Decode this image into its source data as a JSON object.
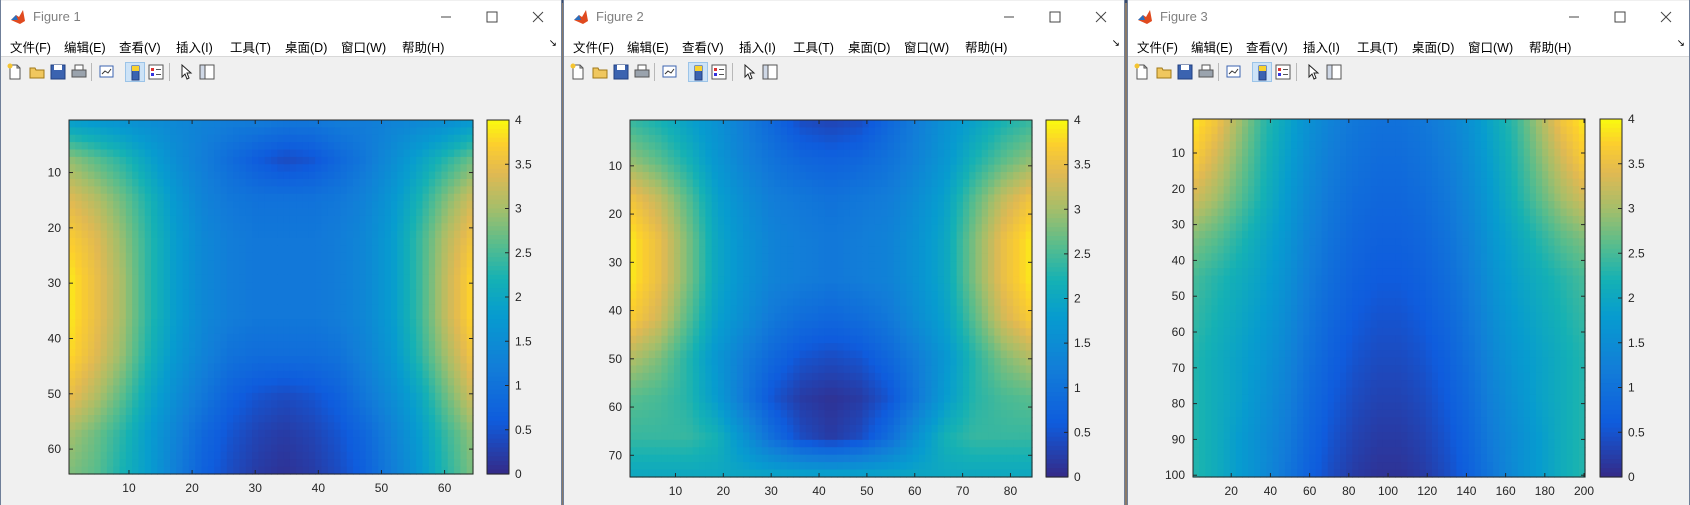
{
  "menu": [
    "文件(F)",
    "编辑(E)",
    "查看(V)",
    "插入(I)",
    "工具(T)",
    "桌面(D)",
    "窗口(W)",
    "帮助(H)"
  ],
  "toolbar_icons": [
    "new-file-icon",
    "open-folder-icon",
    "save-icon",
    "print-icon",
    "link-plot-icon",
    "insert-colorbar-icon",
    "insert-legend-icon",
    "pointer-icon",
    "property-editor-icon"
  ],
  "colors": {
    "parula_low": "#352a87",
    "parula_mid": "#13b4c8",
    "parula_high": "#f9fb0e"
  },
  "figures": [
    {
      "title": "Figure 1",
      "chart_data": {
        "type": "heatmap",
        "colormap": "parula",
        "xlim": [
          0.5,
          64.5
        ],
        "ylim": [
          0.5,
          64.5
        ],
        "y_reversed": true,
        "xticks": [
          10,
          20,
          30,
          40,
          50,
          60
        ],
        "yticks": [
          10,
          20,
          30,
          40,
          50,
          60
        ],
        "clim": [
          0,
          4
        ],
        "colorbar_ticks": [
          "4",
          "3.5",
          "3",
          "2.5",
          "2",
          "1.5",
          "1",
          "0.5",
          "0"
        ],
        "grid": [
          [
            1.8,
            1.7,
            1.6,
            1.5,
            1.4,
            1.3,
            1.2,
            1.2,
            1.1,
            1.1,
            1.2,
            1.2,
            1.3,
            1.4,
            1.5,
            1.7
          ],
          [
            2.9,
            2.6,
            2.3,
            1.9,
            1.5,
            1.2,
            0.9,
            0.6,
            0.4,
            0.5,
            0.8,
            1.1,
            1.5,
            1.9,
            2.3,
            2.7
          ],
          [
            3.4,
            3.1,
            2.7,
            2.2,
            1.7,
            1.3,
            1.1,
            1.0,
            1.0,
            1.0,
            1.1,
            1.3,
            1.7,
            2.2,
            2.8,
            3.3
          ],
          [
            3.7,
            3.4,
            2.9,
            2.3,
            1.8,
            1.4,
            1.2,
            1.1,
            1.1,
            1.1,
            1.2,
            1.4,
            1.8,
            2.4,
            3.1,
            3.6
          ],
          [
            3.9,
            3.5,
            3.0,
            2.3,
            1.8,
            1.4,
            1.2,
            1.1,
            1.1,
            1.1,
            1.2,
            1.4,
            1.8,
            2.4,
            3.2,
            3.8
          ],
          [
            3.9,
            3.5,
            3.0,
            2.3,
            1.8,
            1.4,
            1.2,
            1.1,
            1.1,
            1.1,
            1.2,
            1.4,
            1.8,
            2.4,
            3.2,
            3.8
          ],
          [
            3.8,
            3.4,
            2.9,
            2.2,
            1.7,
            1.3,
            1.0,
            0.9,
            0.9,
            0.9,
            1.0,
            1.3,
            1.7,
            2.3,
            3.0,
            3.6
          ],
          [
            3.5,
            3.1,
            2.6,
            2.0,
            1.5,
            1.1,
            0.7,
            0.5,
            0.4,
            0.5,
            0.7,
            1.1,
            1.5,
            2.0,
            2.7,
            3.3
          ],
          [
            3.0,
            2.7,
            2.3,
            1.8,
            1.3,
            0.8,
            0.5,
            0.3,
            0.2,
            0.3,
            0.5,
            0.8,
            1.3,
            1.8,
            2.4,
            2.9
          ],
          [
            2.8,
            2.6,
            2.2,
            1.8,
            1.2,
            0.7,
            0.4,
            0.2,
            0.1,
            0.2,
            0.4,
            0.7,
            1.2,
            1.7,
            2.3,
            2.8
          ]
        ]
      }
    },
    {
      "title": "Figure 2",
      "chart_data": {
        "type": "heatmap",
        "colormap": "parula",
        "xlim": [
          0.5,
          84.5
        ],
        "ylim": [
          0.5,
          74.5
        ],
        "y_reversed": true,
        "xticks": [
          10,
          20,
          30,
          40,
          50,
          60,
          70,
          80
        ],
        "yticks": [
          10,
          20,
          30,
          40,
          50,
          60,
          70
        ],
        "clim": [
          0,
          4
        ],
        "colorbar_ticks": [
          "4",
          "3.5",
          "3",
          "2.5",
          "2",
          "1.5",
          "1",
          "0.5",
          "0"
        ],
        "grid": [
          [
            2.4,
            2.2,
            1.9,
            1.6,
            1.2,
            0.8,
            0.4,
            0.3,
            0.4,
            0.8,
            1.2,
            1.6,
            1.9,
            2.2,
            2.4
          ],
          [
            2.9,
            2.6,
            2.2,
            1.7,
            1.3,
            1.0,
            0.8,
            0.7,
            0.8,
            1.0,
            1.3,
            1.7,
            2.2,
            2.6,
            2.9
          ],
          [
            3.6,
            3.2,
            2.6,
            1.9,
            1.5,
            1.2,
            1.1,
            1.0,
            1.1,
            1.2,
            1.5,
            1.9,
            2.6,
            3.2,
            3.6
          ],
          [
            3.9,
            3.5,
            2.8,
            2.0,
            1.6,
            1.3,
            1.2,
            1.1,
            1.2,
            1.3,
            1.6,
            2.0,
            2.8,
            3.5,
            3.9
          ],
          [
            3.9,
            3.5,
            2.8,
            2.0,
            1.6,
            1.3,
            1.2,
            1.1,
            1.2,
            1.3,
            1.6,
            2.0,
            2.8,
            3.5,
            3.9
          ],
          [
            3.7,
            3.3,
            2.6,
            1.9,
            1.5,
            1.1,
            0.9,
            0.8,
            0.9,
            1.1,
            1.5,
            1.9,
            2.6,
            3.3,
            3.7
          ],
          [
            3.1,
            2.8,
            2.3,
            1.7,
            1.2,
            0.8,
            0.5,
            0.4,
            0.5,
            0.8,
            1.2,
            1.7,
            2.3,
            2.8,
            3.1
          ],
          [
            2.6,
            2.5,
            2.3,
            1.8,
            1.1,
            0.5,
            0.2,
            0.1,
            0.2,
            0.5,
            1.1,
            1.8,
            2.3,
            2.5,
            2.6
          ],
          [
            2.4,
            2.4,
            2.4,
            2.2,
            1.6,
            0.9,
            0.4,
            0.2,
            0.4,
            0.9,
            1.6,
            2.2,
            2.4,
            2.4,
            2.4
          ],
          [
            2.0,
            2.0,
            2.0,
            2.0,
            2.0,
            2.0,
            2.0,
            2.0,
            2.0,
            2.0,
            2.0,
            2.0,
            2.0,
            2.0,
            2.0
          ]
        ]
      }
    },
    {
      "title": "Figure 3",
      "chart_data": {
        "type": "heatmap",
        "colormap": "parula",
        "xlim": [
          0.5,
          200.5
        ],
        "ylim": [
          0.5,
          100.5
        ],
        "y_reversed": true,
        "xticks": [
          20,
          40,
          60,
          80,
          100,
          120,
          140,
          160,
          180,
          200
        ],
        "yticks": [
          10,
          20,
          30,
          40,
          50,
          60,
          70,
          80,
          90,
          100
        ],
        "clim": [
          0,
          4
        ],
        "colorbar_ticks": [
          "4",
          "3.5",
          "3",
          "2.5",
          "2",
          "1.5",
          "1",
          "0.5",
          "0"
        ],
        "grid": [
          [
            3.9,
            3.6,
            3.0,
            2.4,
            2.0,
            1.6,
            1.3,
            1.1,
            1.0,
            1.0,
            1.1,
            1.3,
            1.6,
            2.0,
            2.4,
            3.0,
            3.6,
            3.9
          ],
          [
            3.7,
            3.3,
            2.8,
            2.3,
            1.9,
            1.5,
            1.2,
            1.0,
            0.9,
            0.9,
            1.0,
            1.2,
            1.5,
            1.9,
            2.3,
            2.8,
            3.3,
            3.7
          ],
          [
            3.3,
            3.0,
            2.6,
            2.2,
            1.8,
            1.4,
            1.1,
            0.9,
            0.8,
            0.8,
            0.9,
            1.1,
            1.4,
            1.8,
            2.2,
            2.6,
            3.0,
            3.3
          ],
          [
            2.8,
            2.6,
            2.3,
            2.0,
            1.7,
            1.3,
            1.0,
            0.8,
            0.7,
            0.7,
            0.8,
            1.0,
            1.3,
            1.7,
            2.0,
            2.3,
            2.6,
            2.8
          ],
          [
            2.5,
            2.3,
            2.1,
            1.9,
            1.6,
            1.2,
            0.9,
            0.7,
            0.6,
            0.6,
            0.7,
            0.9,
            1.2,
            1.6,
            1.9,
            2.1,
            2.3,
            2.5
          ],
          [
            2.4,
            2.2,
            2.0,
            1.8,
            1.5,
            1.1,
            0.8,
            0.6,
            0.5,
            0.5,
            0.6,
            0.8,
            1.1,
            1.5,
            1.8,
            2.0,
            2.2,
            2.4
          ],
          [
            2.3,
            2.1,
            1.9,
            1.7,
            1.4,
            1.0,
            0.7,
            0.5,
            0.4,
            0.4,
            0.5,
            0.7,
            1.0,
            1.4,
            1.7,
            1.9,
            2.1,
            2.3
          ],
          [
            2.3,
            2.1,
            1.9,
            1.6,
            1.3,
            0.9,
            0.6,
            0.4,
            0.3,
            0.3,
            0.4,
            0.6,
            0.9,
            1.3,
            1.6,
            1.9,
            2.1,
            2.3
          ],
          [
            2.3,
            2.1,
            1.8,
            1.5,
            1.2,
            0.8,
            0.5,
            0.3,
            0.2,
            0.2,
            0.3,
            0.5,
            0.8,
            1.2,
            1.5,
            1.8,
            2.1,
            2.3
          ],
          [
            2.3,
            2.1,
            1.8,
            1.5,
            1.1,
            0.7,
            0.4,
            0.2,
            0.1,
            0.1,
            0.2,
            0.4,
            0.7,
            1.1,
            1.5,
            1.8,
            2.1,
            2.3
          ]
        ]
      }
    }
  ]
}
